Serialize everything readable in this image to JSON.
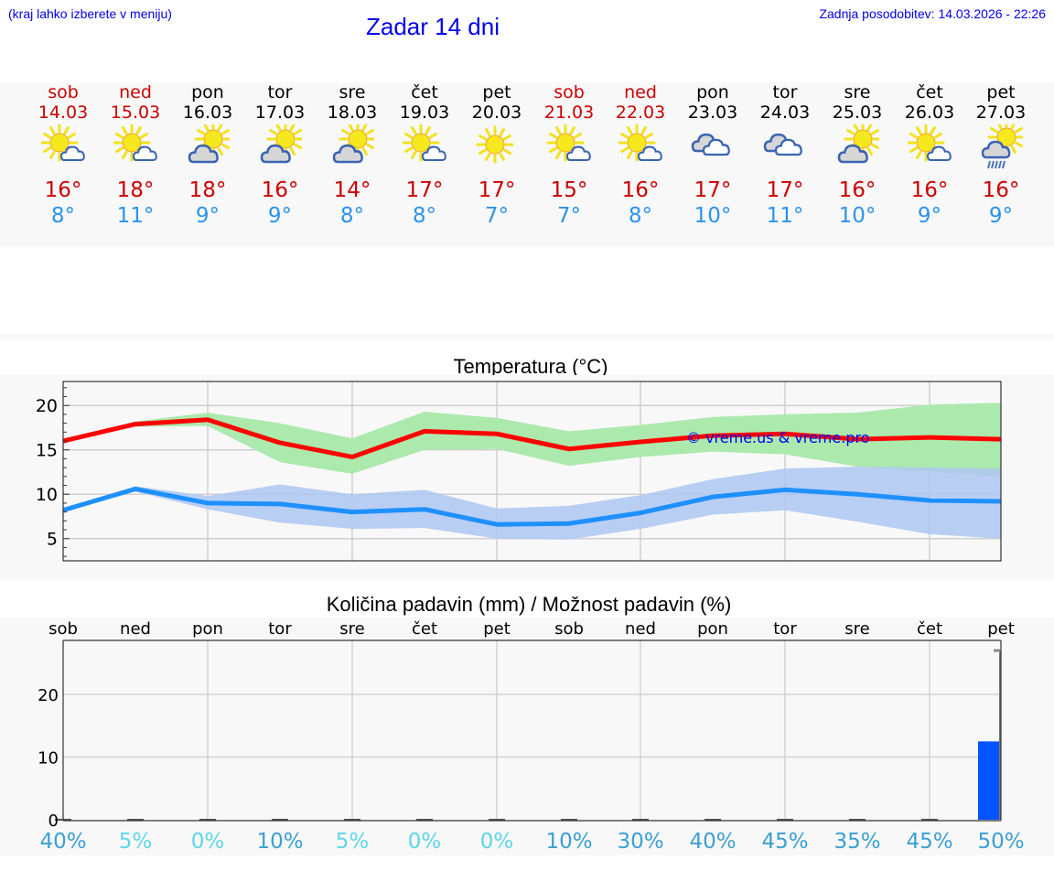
{
  "header": {
    "hint": "(kraj lahko izberete v meniju)",
    "title": "Zadar 14 dni",
    "updated": "Zadnja posodobitev: 14.03.2026 - 22:26"
  },
  "days": [
    {
      "name": "sob",
      "date": "14.03",
      "weekend": true,
      "icon": "sun-small-cloud-icon",
      "tmax": "16°",
      "tmin": "8°"
    },
    {
      "name": "ned",
      "date": "15.03",
      "weekend": true,
      "icon": "sun-small-cloud-icon",
      "tmax": "18°",
      "tmin": "11°"
    },
    {
      "name": "pon",
      "date": "16.03",
      "weekend": false,
      "icon": "partly-cloudy-icon",
      "tmax": "18°",
      "tmin": "9°"
    },
    {
      "name": "tor",
      "date": "17.03",
      "weekend": false,
      "icon": "partly-cloudy-icon",
      "tmax": "16°",
      "tmin": "9°"
    },
    {
      "name": "sre",
      "date": "18.03",
      "weekend": false,
      "icon": "partly-cloudy-icon",
      "tmax": "14°",
      "tmin": "8°"
    },
    {
      "name": "čet",
      "date": "19.03",
      "weekend": false,
      "icon": "sun-small-cloud-icon",
      "tmax": "17°",
      "tmin": "8°"
    },
    {
      "name": "pet",
      "date": "20.03",
      "weekend": false,
      "icon": "sun-icon",
      "tmax": "17°",
      "tmin": "7°"
    },
    {
      "name": "sob",
      "date": "21.03",
      "weekend": true,
      "icon": "sun-small-cloud-icon",
      "tmax": "15°",
      "tmin": "7°"
    },
    {
      "name": "ned",
      "date": "22.03",
      "weekend": true,
      "icon": "sun-small-cloud-icon",
      "tmax": "16°",
      "tmin": "8°"
    },
    {
      "name": "pon",
      "date": "23.03",
      "weekend": false,
      "icon": "cloudy-icon",
      "tmax": "17°",
      "tmin": "10°"
    },
    {
      "name": "tor",
      "date": "24.03",
      "weekend": false,
      "icon": "cloudy-icon",
      "tmax": "17°",
      "tmin": "11°"
    },
    {
      "name": "sre",
      "date": "25.03",
      "weekend": false,
      "icon": "partly-cloudy-icon",
      "tmax": "16°",
      "tmin": "10°"
    },
    {
      "name": "čet",
      "date": "26.03",
      "weekend": false,
      "icon": "sun-small-cloud-icon",
      "tmax": "16°",
      "tmin": "9°"
    },
    {
      "name": "pet",
      "date": "27.03",
      "weekend": false,
      "icon": "partly-cloudy-rain-icon",
      "tmax": "16°",
      "tmin": "9°"
    }
  ],
  "colors": {
    "weekend": "#cc0000",
    "tmax": "#cc0000",
    "tmin": "#2b93f0",
    "max_line": "#ff0000",
    "min_line": "#1e90ff",
    "max_band": "#ace9ad",
    "min_band": "#aec7f2",
    "overlap_band": "#7fc9a8",
    "precip_bar": "#0055ff",
    "pct_dark": "#3a9fd4",
    "pct_light": "#5dd6e8",
    "watermark": "#0000ee"
  },
  "chart_data": [
    {
      "type": "line",
      "title": "Temperatura (°C)",
      "xlabel": "",
      "ylabel": "",
      "categories": [
        "14.03",
        "15.03",
        "16.03",
        "17.03",
        "18.03",
        "19.03",
        "20.03",
        "21.03",
        "22.03",
        "23.03",
        "24.03",
        "25.03",
        "26.03",
        "27.03"
      ],
      "ylim": [
        2.5,
        22.7
      ],
      "yticks": [
        5,
        10,
        15,
        20
      ],
      "grid": true,
      "annotation": "© vreme.us & vreme.pro",
      "series": [
        {
          "name": "max",
          "color": "#ff0000",
          "values": [
            16.0,
            17.9,
            18.4,
            15.8,
            14.2,
            17.1,
            16.8,
            15.1,
            15.9,
            16.6,
            16.8,
            16.2,
            16.4,
            16.2
          ]
        },
        {
          "name": "min",
          "color": "#1e90ff",
          "values": [
            8.2,
            10.6,
            9.0,
            8.9,
            8.0,
            8.3,
            6.6,
            6.7,
            7.9,
            9.7,
            10.5,
            10.0,
            9.3,
            9.2
          ]
        },
        {
          "name": "max_range_high",
          "values": [
            16.0,
            18.2,
            19.2,
            18.0,
            16.3,
            19.3,
            18.6,
            17.1,
            17.8,
            18.7,
            19.0,
            19.2,
            20.1,
            20.3
          ]
        },
        {
          "name": "max_range_low",
          "values": [
            16.0,
            17.6,
            17.7,
            13.6,
            12.3,
            15.0,
            15.1,
            13.2,
            14.2,
            14.8,
            14.5,
            13.1,
            12.6,
            12.0
          ]
        },
        {
          "name": "min_range_high",
          "values": [
            8.2,
            10.9,
            9.8,
            11.1,
            10.0,
            10.5,
            8.4,
            8.7,
            9.9,
            11.7,
            12.9,
            13.1,
            13.0,
            12.9
          ]
        },
        {
          "name": "min_range_low",
          "values": [
            8.2,
            10.3,
            8.3,
            6.8,
            6.1,
            6.2,
            5.0,
            4.9,
            6.1,
            7.7,
            8.2,
            6.9,
            5.5,
            5.0
          ]
        }
      ]
    },
    {
      "type": "bar",
      "title": "Količina padavin (mm) / Možnost padavin (%)",
      "xlabel": "",
      "ylabel": "",
      "categories": [
        "sob",
        "ned",
        "pon",
        "tor",
        "sre",
        "čet",
        "pet",
        "sob",
        "ned",
        "pon",
        "tor",
        "sre",
        "čet",
        "pet"
      ],
      "ylim": [
        -1.5,
        27.5
      ],
      "yticks": [
        0,
        10,
        20
      ],
      "grid": true,
      "series": [
        {
          "name": "precip_mm",
          "values": [
            0,
            0,
            0,
            0,
            0,
            0,
            0,
            0,
            0,
            0,
            0,
            0,
            0,
            12.5
          ]
        },
        {
          "name": "precip_max_mm",
          "values": [
            0,
            0,
            0,
            0,
            0,
            0,
            0,
            0,
            0,
            0,
            0,
            0,
            0,
            27
          ]
        }
      ],
      "probability_labels": [
        "40%",
        "5%",
        "0%",
        "10%",
        "5%",
        "0%",
        "0%",
        "10%",
        "30%",
        "40%",
        "45%",
        "35%",
        "45%",
        "50%"
      ]
    }
  ]
}
